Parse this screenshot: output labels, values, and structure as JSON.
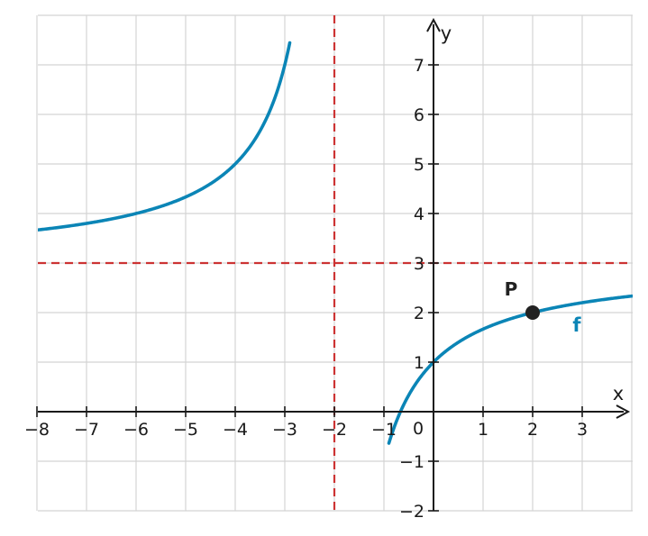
{
  "chart_data": {
    "type": "line",
    "xlabel": "x",
    "ylabel": "y",
    "xlim": [
      -8,
      4
    ],
    "ylim": [
      -2,
      8
    ],
    "x_ticks": [
      -8,
      -7,
      -6,
      -5,
      -4,
      -3,
      -2,
      -1,
      0,
      1,
      2,
      3
    ],
    "y_ticks": [
      -2,
      -1,
      1,
      2,
      3,
      4,
      5,
      6,
      7
    ],
    "origin_label": "0",
    "grid": true,
    "series": [
      {
        "name": "f",
        "color": "#0b85b6",
        "branches": [
          {
            "x": [
              -8,
              -7,
              -6,
              -5,
              -4,
              -3.6,
              -3.3,
              -3.1,
              -2.9
            ],
            "y": [
              3.67,
              3.8,
              4,
              4.33,
              5,
              5.5,
              6.08,
              6.64,
              7.61
            ]
          },
          {
            "x": [
              -0.9,
              -0.7,
              -0.5,
              -0.3,
              0,
              0.5,
              1,
              2,
              3,
              4
            ],
            "y": [
              -2,
              -1.24,
              -0.67,
              -0.18,
              1,
              1.4,
              1.67,
              2,
              2.2,
              2.33
            ]
          }
        ]
      }
    ],
    "asymptotes": [
      {
        "orientation": "vertical",
        "value": -2,
        "color": "#cc3333"
      },
      {
        "orientation": "horizontal",
        "value": 3,
        "color": "#cc3333"
      }
    ],
    "points": [
      {
        "label": "P",
        "x": 2,
        "y": 2,
        "color": "#222222"
      }
    ],
    "curve_label": "f"
  }
}
